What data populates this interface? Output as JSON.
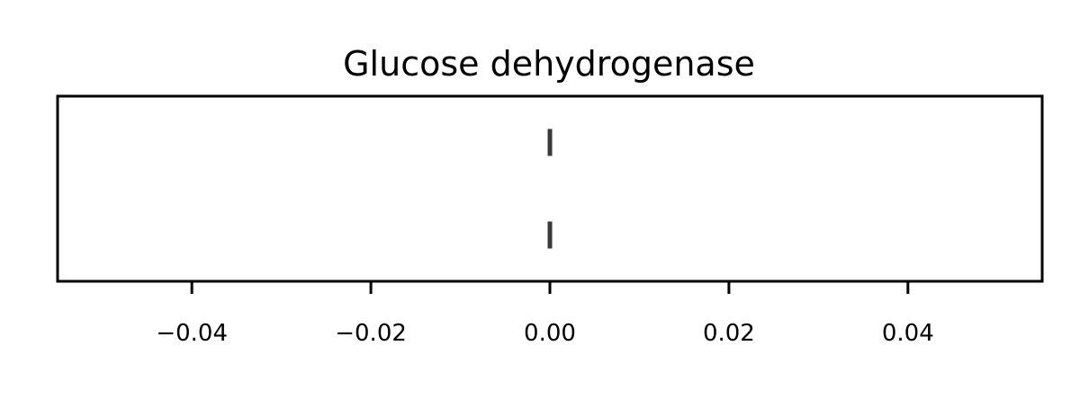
{
  "chart_data": {
    "type": "scatter",
    "title": "Glucose dehydrogenase",
    "xlabel": "",
    "ylabel": "",
    "xlim": [
      -0.055,
      0.055
    ],
    "ylim": [
      -0.5,
      1.5
    ],
    "x_ticks": [
      -0.04,
      -0.02,
      0.0,
      0.02,
      0.04
    ],
    "x_tick_labels": [
      "−0.04",
      "−0.02",
      "0.00",
      "0.02",
      "0.04"
    ],
    "y_ticks_visible": false,
    "grid": false,
    "legend": "none",
    "marker": "vertical-line",
    "series": [
      {
        "color": "#3a3a3a",
        "points": [
          {
            "x": 0.0,
            "y": 1
          },
          {
            "x": 0.0,
            "y": 0
          }
        ]
      }
    ]
  }
}
